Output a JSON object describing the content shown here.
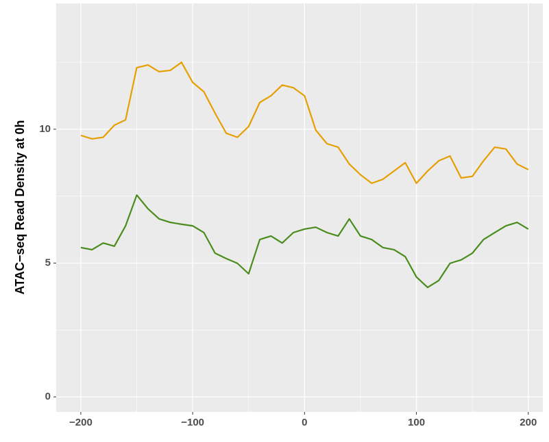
{
  "chart_data": {
    "type": "line",
    "y_label": "ATAC−seq Read Density at 0h",
    "x": [
      -200,
      -190,
      -180,
      -170,
      -160,
      -150,
      -140,
      -130,
      -120,
      -110,
      -100,
      -90,
      -80,
      -70,
      -60,
      -50,
      -40,
      -30,
      -20,
      -10,
      0,
      10,
      20,
      30,
      40,
      50,
      60,
      70,
      80,
      90,
      100,
      110,
      120,
      130,
      140,
      150,
      160,
      170,
      180,
      190,
      200
    ],
    "series": [
      {
        "color": "#E69F00",
        "values": [
          9.77,
          9.64,
          9.7,
          10.15,
          10.35,
          12.3,
          12.4,
          12.15,
          12.2,
          12.5,
          11.75,
          11.4,
          10.6,
          9.85,
          9.7,
          10.1,
          11.0,
          11.25,
          11.65,
          11.55,
          11.25,
          9.97,
          9.46,
          9.33,
          8.7,
          8.3,
          7.98,
          8.13,
          8.44,
          8.75,
          7.98,
          8.44,
          8.82,
          9.0,
          8.18,
          8.24,
          8.82,
          9.33,
          9.26,
          8.7,
          8.49
        ]
      },
      {
        "color": "#4A8C1C",
        "values": [
          5.58,
          5.5,
          5.75,
          5.63,
          6.39,
          7.54,
          7.03,
          6.65,
          6.52,
          6.45,
          6.39,
          6.14,
          5.37,
          5.17,
          4.99,
          4.6,
          5.88,
          6.01,
          5.75,
          6.14,
          6.27,
          6.34,
          6.14,
          6.01,
          6.65,
          6.01,
          5.88,
          5.58,
          5.5,
          5.24,
          4.48,
          4.09,
          4.35,
          4.99,
          5.12,
          5.37,
          5.88,
          6.14,
          6.39,
          6.52,
          6.27
        ]
      }
    ],
    "xlim": [
      -222,
      213
    ],
    "ylim": [
      -0.56,
      14.7
    ],
    "xticks": [
      {
        "value": -200,
        "label": "−200"
      },
      {
        "value": -100,
        "label": "−100"
      },
      0,
      100,
      200
    ],
    "yticks": [
      0,
      5,
      10
    ],
    "x_minor_ticks": [
      -150,
      -50,
      50,
      150
    ],
    "y_minor_ticks": [
      2.5,
      7.5,
      12.5
    ],
    "grid": true
  }
}
